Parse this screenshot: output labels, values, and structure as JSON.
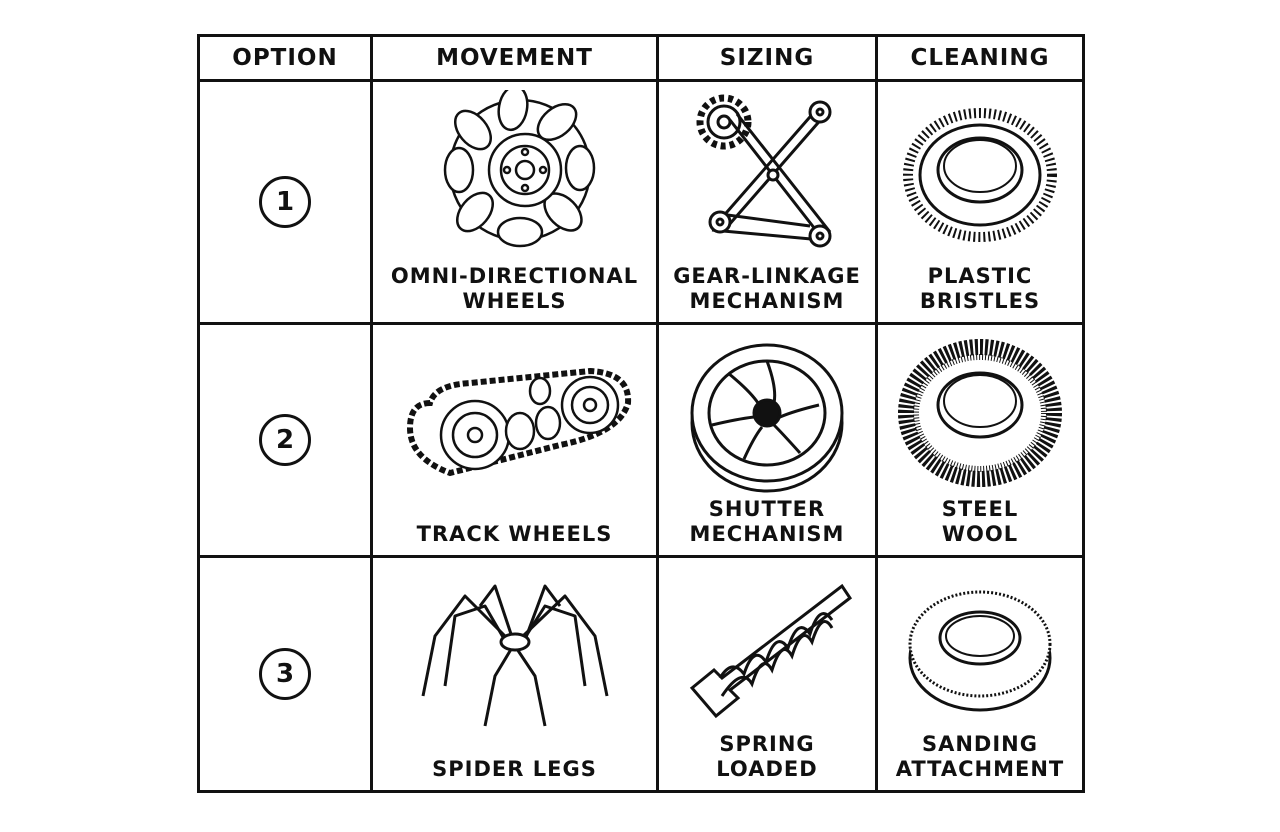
{
  "headers": {
    "option": "OPTION",
    "movement": "MOVEMENT",
    "sizing": "SIZING",
    "cleaning": "CLEANING"
  },
  "rows": [
    {
      "option": "1",
      "movement": {
        "label": "OMNI-DIRECTIONAL\nWHEELS",
        "icon": "omni-wheel-icon"
      },
      "sizing": {
        "label": "GEAR-LINKAGE\nMECHANISM",
        "icon": "gear-linkage-icon"
      },
      "cleaning": {
        "label": "PLASTIC\nBRISTLES",
        "icon": "bristle-ring-icon"
      }
    },
    {
      "option": "2",
      "movement": {
        "label": "TRACK WHEELS",
        "icon": "track-wheels-icon"
      },
      "sizing": {
        "label": "SHUTTER\nMECHANISM",
        "icon": "shutter-icon"
      },
      "cleaning": {
        "label": "STEEL\nWOOL",
        "icon": "steel-wool-icon"
      }
    },
    {
      "option": "3",
      "movement": {
        "label": "SPIDER LEGS",
        "icon": "spider-legs-icon"
      },
      "sizing": {
        "label": "SPRING\nLOADED",
        "icon": "spring-icon"
      },
      "cleaning": {
        "label": "SANDING\nATTACHMENT",
        "icon": "sanding-ring-icon"
      }
    }
  ],
  "colors": {
    "ink": "#111111",
    "paper": "#ffffff"
  }
}
